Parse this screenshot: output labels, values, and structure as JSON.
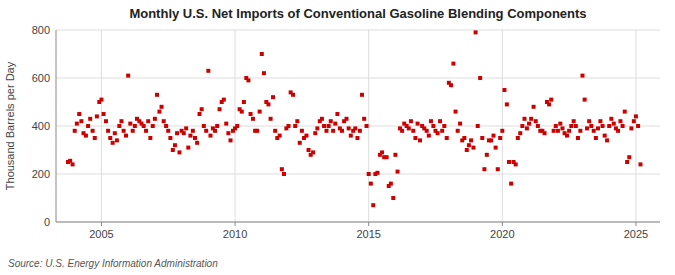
{
  "chart_data": {
    "type": "scatter",
    "title": "Monthly U.S. Net Imports of Conventional Gasoline Blending Components",
    "y_label": "Thousand Barrels per Day",
    "annotations": [
      "Source: U.S. Energy Information Administration"
    ],
    "color": "#cc0000",
    "marker": "square",
    "grid": true,
    "xlim": [
      2003.3,
      2025.9
    ],
    "xticks": [
      2005,
      2010,
      2015,
      2020,
      2025
    ],
    "ylim": [
      0,
      800
    ],
    "yticks": [
      0,
      200,
      400,
      600,
      800
    ],
    "x": [
      2003.75,
      2003.83,
      2003.92,
      2004.0,
      2004.08,
      2004.17,
      2004.25,
      2004.33,
      2004.42,
      2004.5,
      2004.58,
      2004.67,
      2004.75,
      2004.83,
      2004.92,
      2005.0,
      2005.08,
      2005.17,
      2005.25,
      2005.33,
      2005.42,
      2005.5,
      2005.58,
      2005.67,
      2005.75,
      2005.83,
      2005.92,
      2006.0,
      2006.08,
      2006.17,
      2006.25,
      2006.33,
      2006.42,
      2006.5,
      2006.58,
      2006.67,
      2006.75,
      2006.83,
      2006.92,
      2007.0,
      2007.08,
      2007.17,
      2007.25,
      2007.33,
      2007.42,
      2007.5,
      2007.58,
      2007.67,
      2007.75,
      2007.83,
      2007.92,
      2008.0,
      2008.08,
      2008.17,
      2008.25,
      2008.33,
      2008.42,
      2008.5,
      2008.58,
      2008.67,
      2008.75,
      2008.83,
      2008.92,
      2009.0,
      2009.08,
      2009.17,
      2009.25,
      2009.33,
      2009.42,
      2009.5,
      2009.58,
      2009.67,
      2009.75,
      2009.83,
      2009.92,
      2010.0,
      2010.08,
      2010.17,
      2010.25,
      2010.33,
      2010.42,
      2010.5,
      2010.58,
      2010.67,
      2010.75,
      2010.83,
      2010.92,
      2011.0,
      2011.08,
      2011.17,
      2011.25,
      2011.33,
      2011.42,
      2011.5,
      2011.58,
      2011.67,
      2011.75,
      2011.83,
      2011.92,
      2012.0,
      2012.08,
      2012.17,
      2012.25,
      2012.33,
      2012.42,
      2012.5,
      2012.58,
      2012.67,
      2012.75,
      2012.83,
      2012.92,
      2013.0,
      2013.08,
      2013.17,
      2013.25,
      2013.33,
      2013.42,
      2013.5,
      2013.58,
      2013.67,
      2013.75,
      2013.83,
      2013.92,
      2014.0,
      2014.08,
      2014.17,
      2014.25,
      2014.33,
      2014.42,
      2014.5,
      2014.58,
      2014.67,
      2014.75,
      2014.83,
      2014.92,
      2015.0,
      2015.08,
      2015.17,
      2015.25,
      2015.33,
      2015.42,
      2015.5,
      2015.58,
      2015.67,
      2015.75,
      2015.83,
      2015.92,
      2016.0,
      2016.08,
      2016.17,
      2016.25,
      2016.33,
      2016.42,
      2016.5,
      2016.58,
      2016.67,
      2016.75,
      2016.83,
      2016.92,
      2017.0,
      2017.08,
      2017.17,
      2017.25,
      2017.33,
      2017.42,
      2017.5,
      2017.58,
      2017.67,
      2017.75,
      2017.83,
      2017.92,
      2018.0,
      2018.08,
      2018.17,
      2018.25,
      2018.33,
      2018.42,
      2018.5,
      2018.58,
      2018.67,
      2018.75,
      2018.83,
      2018.92,
      2019.0,
      2019.08,
      2019.17,
      2019.25,
      2019.33,
      2019.42,
      2019.5,
      2019.58,
      2019.67,
      2019.75,
      2019.83,
      2019.92,
      2020.0,
      2020.08,
      2020.17,
      2020.25,
      2020.33,
      2020.42,
      2020.5,
      2020.58,
      2020.67,
      2020.75,
      2020.83,
      2020.92,
      2021.0,
      2021.08,
      2021.17,
      2021.25,
      2021.33,
      2021.42,
      2021.5,
      2021.58,
      2021.67,
      2021.75,
      2021.83,
      2021.92,
      2022.0,
      2022.08,
      2022.17,
      2022.25,
      2022.33,
      2022.42,
      2022.5,
      2022.58,
      2022.67,
      2022.75,
      2022.83,
      2022.92,
      2023.0,
      2023.08,
      2023.17,
      2023.25,
      2023.33,
      2023.42,
      2023.5,
      2023.58,
      2023.67,
      2023.75,
      2023.83,
      2023.92,
      2024.0,
      2024.08,
      2024.17,
      2024.25,
      2024.33,
      2024.42,
      2024.5,
      2024.58,
      2024.67,
      2024.75,
      2024.83,
      2024.92,
      2025.0,
      2025.08,
      2025.17
    ],
    "y": [
      250,
      255,
      240,
      380,
      410,
      450,
      420,
      370,
      360,
      400,
      430,
      380,
      350,
      440,
      500,
      510,
      450,
      420,
      380,
      350,
      330,
      370,
      340,
      400,
      420,
      380,
      360,
      610,
      410,
      380,
      400,
      430,
      420,
      410,
      400,
      380,
      420,
      350,
      400,
      430,
      530,
      460,
      480,
      420,
      400,
      380,
      350,
      300,
      320,
      370,
      290,
      380,
      370,
      390,
      310,
      360,
      380,
      350,
      330,
      450,
      470,
      400,
      380,
      630,
      360,
      390,
      380,
      400,
      470,
      500,
      510,
      410,
      370,
      340,
      380,
      390,
      400,
      470,
      460,
      500,
      600,
      590,
      450,
      430,
      380,
      380,
      460,
      700,
      620,
      500,
      490,
      430,
      520,
      380,
      350,
      360,
      220,
      200,
      390,
      400,
      540,
      530,
      400,
      420,
      330,
      380,
      350,
      360,
      300,
      280,
      290,
      370,
      390,
      420,
      430,
      400,
      380,
      400,
      420,
      380,
      410,
      450,
      390,
      380,
      420,
      430,
      390,
      360,
      380,
      390,
      350,
      380,
      530,
      430,
      400,
      200,
      160,
      70,
      200,
      205,
      280,
      290,
      270,
      270,
      150,
      160,
      100,
      280,
      210,
      390,
      380,
      410,
      400,
      390,
      420,
      380,
      350,
      410,
      340,
      400,
      390,
      380,
      360,
      420,
      400,
      380,
      370,
      420,
      380,
      400,
      350,
      580,
      570,
      660,
      460,
      380,
      410,
      340,
      350,
      300,
      320,
      340,
      310,
      790,
      400,
      600,
      350,
      220,
      280,
      340,
      340,
      360,
      310,
      220,
      350,
      380,
      550,
      490,
      250,
      160,
      250,
      240,
      350,
      370,
      400,
      430,
      390,
      410,
      430,
      480,
      420,
      400,
      380,
      380,
      370,
      500,
      490,
      510,
      380,
      400,
      380,
      410,
      390,
      370,
      360,
      380,
      400,
      420,
      400,
      350,
      380,
      610,
      510,
      390,
      420,
      400,
      380,
      350,
      390,
      420,
      400,
      360,
      340,
      400,
      430,
      410,
      390,
      380,
      420,
      400,
      460,
      250,
      270,
      390,
      420,
      440,
      400,
      240
    ]
  }
}
